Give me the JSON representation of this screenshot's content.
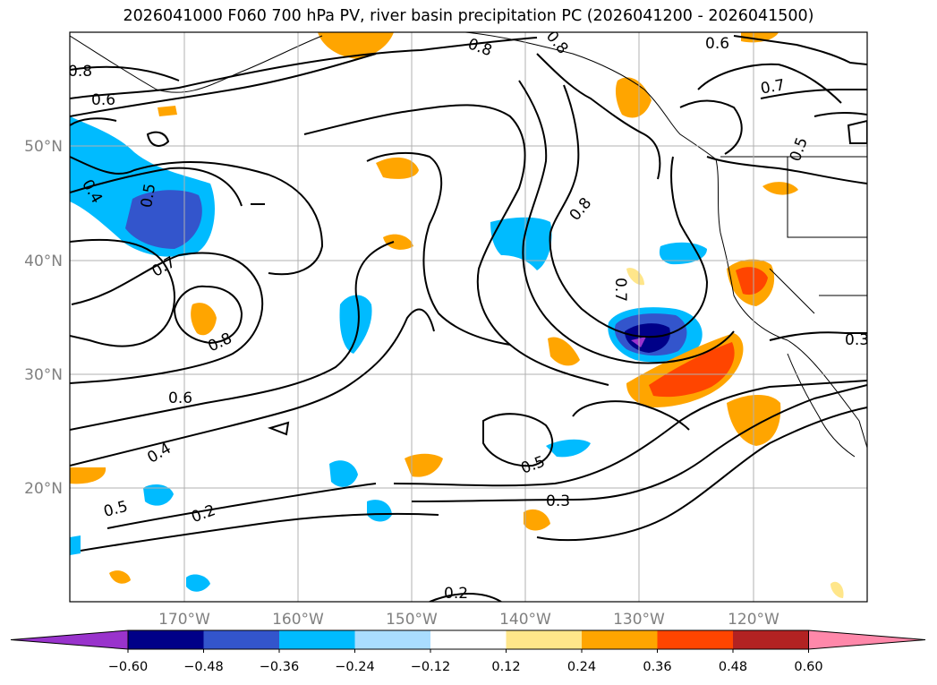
{
  "title": "2026041000 F060 700 hPa PV, river basin precipitation PC (2026041200 - 2026041500)",
  "lat_labels": [
    "50°N",
    "40°N",
    "30°N",
    "20°N"
  ],
  "lon_labels": [
    "170°W",
    "160°W",
    "150°W",
    "140°W",
    "130°W",
    "120°W"
  ],
  "colorbar": {
    "ticks": [
      "−0.60",
      "−0.48",
      "−0.36",
      "−0.24",
      "−0.12",
      "0.12",
      "0.24",
      "0.36",
      "0.48",
      "0.60"
    ],
    "colors": [
      "#9933cc",
      "#000088",
      "#3355cc",
      "#00bbff",
      "#aaddff",
      "#ffffff",
      "#ffe68a",
      "#ffa500",
      "#ff4500",
      "#b22222",
      "#ff88aa"
    ]
  },
  "contour_labels": [
    "0.8",
    "0.6",
    "0.4",
    "0.5",
    "0.7",
    "0.8",
    "0.6",
    "0.4",
    "0.2",
    "0.5",
    "0.8",
    "0.8",
    "0.6",
    "0.7",
    "0.5",
    "0.8",
    "0.7",
    "0.5",
    "0.3",
    "0.3",
    "0.2"
  ]
}
